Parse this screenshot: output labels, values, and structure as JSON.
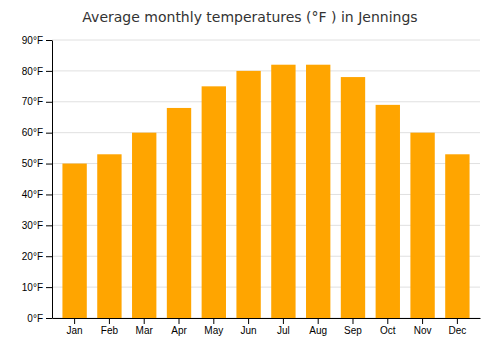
{
  "chart_data": {
    "type": "bar",
    "title": "Average monthly temperatures (°F ) in Jennings",
    "categories": [
      "Jan",
      "Feb",
      "Mar",
      "Apr",
      "May",
      "Jun",
      "Jul",
      "Aug",
      "Sep",
      "Oct",
      "Nov",
      "Dec"
    ],
    "values": [
      50,
      53,
      60,
      68,
      75,
      80,
      82,
      82,
      78,
      69,
      60,
      53
    ],
    "color": "#FFA500",
    "ylim": [
      0,
      90
    ],
    "yticks": [
      {
        "value": 0,
        "label": "0°F"
      },
      {
        "value": 10,
        "label": "10°F"
      },
      {
        "value": 20,
        "label": "20°F"
      },
      {
        "value": 30,
        "label": "30°F"
      },
      {
        "value": 40,
        "label": "40°F"
      },
      {
        "value": 50,
        "label": "50°F"
      },
      {
        "value": 60,
        "label": "60°F"
      },
      {
        "value": 70,
        "label": "70°F"
      },
      {
        "value": 80,
        "label": "80°F"
      },
      {
        "value": 90,
        "label": "90°F"
      }
    ],
    "grid": true
  }
}
